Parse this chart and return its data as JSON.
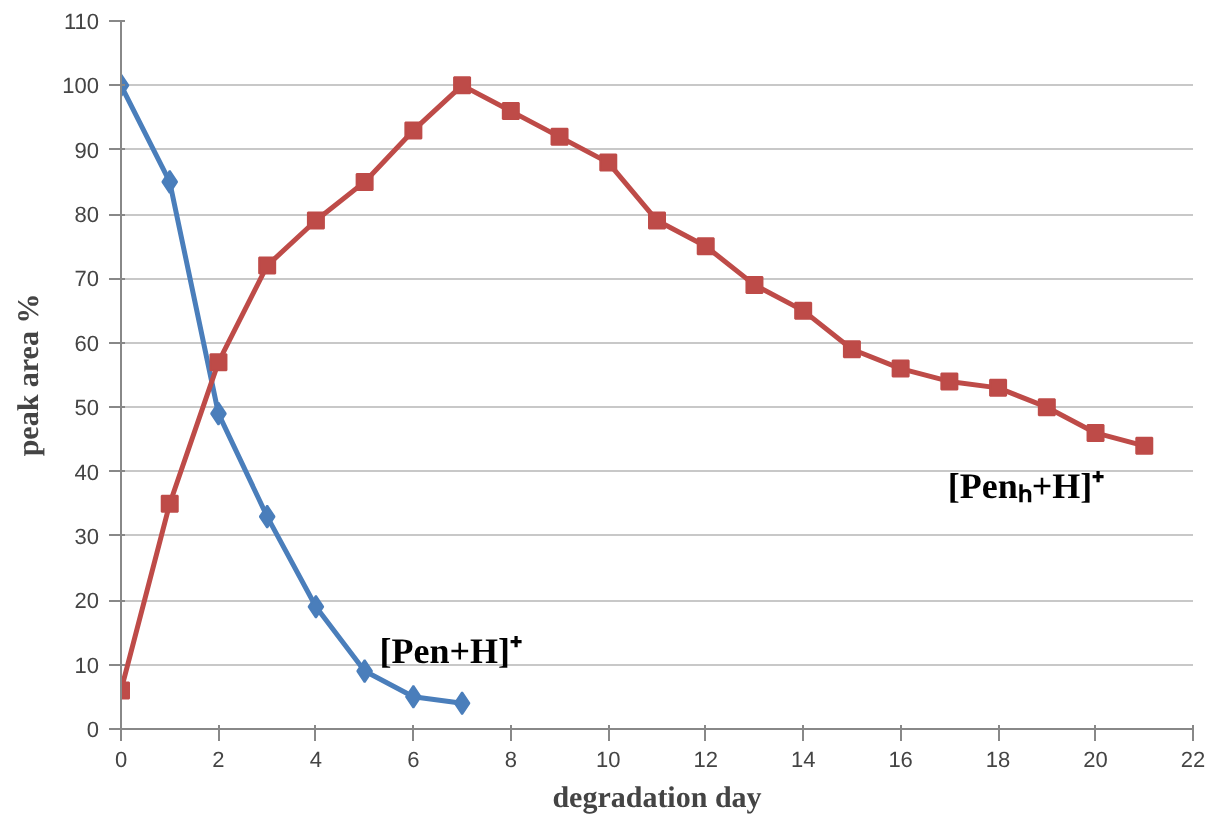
{
  "chart_data": {
    "type": "line",
    "xlabel": "degradation day",
    "ylabel": "peak area %",
    "x": [
      0,
      1,
      2,
      3,
      4,
      5,
      6,
      7,
      8,
      9,
      10,
      11,
      12,
      13,
      14,
      15,
      16,
      17,
      18,
      19,
      20,
      21
    ],
    "series": [
      {
        "name": "[Pen+H]⁺",
        "color": "#4a7ebb",
        "marker": "diamond",
        "x": [
          0,
          1,
          2,
          3,
          4,
          5,
          6,
          7
        ],
        "values": [
          100,
          85,
          49,
          33,
          19,
          9,
          5,
          4
        ]
      },
      {
        "name": "[Penₕ+H]⁺",
        "color": "#be4b48",
        "marker": "square",
        "values": [
          6,
          35,
          57,
          72,
          79,
          85,
          93,
          100,
          96,
          92,
          88,
          79,
          75,
          69,
          65,
          59,
          56,
          54,
          53,
          50,
          46,
          44
        ]
      }
    ],
    "xlim": [
      0,
      22
    ],
    "xticks": [
      0,
      2,
      4,
      6,
      8,
      10,
      12,
      14,
      16,
      18,
      20,
      22
    ],
    "ylim": [
      0,
      110
    ],
    "yticks": [
      0,
      10,
      20,
      30,
      40,
      50,
      60,
      70,
      80,
      90,
      100,
      110
    ],
    "grid": "y",
    "line_style": "solid"
  }
}
